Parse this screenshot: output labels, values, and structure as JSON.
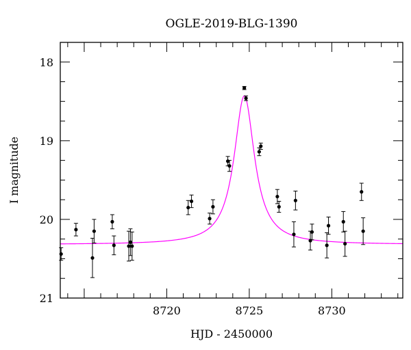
{
  "chart_data": {
    "type": "scatter",
    "title": "OGLE-2019-BLG-1390",
    "xlabel": "HJD - 2450000",
    "ylabel": "I magnitude",
    "xlim": [
      8713.55,
      8734.3
    ],
    "ylim": [
      21,
      17.75
    ],
    "y_inverted": true,
    "x_tick_labels": [
      "8720",
      "8725",
      "8730"
    ],
    "x_ticks": [
      8720,
      8725,
      8730
    ],
    "y_tick_labels": [
      "18",
      "19",
      "20",
      "21"
    ],
    "y_ticks": [
      18,
      19,
      20,
      21
    ],
    "grid": false,
    "legend": "none",
    "series": [
      {
        "kind": "points_with_errorbars",
        "color": "#000000",
        "points": [
          {
            "x": 8713.6,
            "y": 20.44,
            "err": 0.08
          },
          {
            "x": 8714.5,
            "y": 20.13,
            "err": 0.08
          },
          {
            "x": 8715.5,
            "y": 20.49,
            "err": 0.25
          },
          {
            "x": 8715.6,
            "y": 20.15,
            "err": 0.15
          },
          {
            "x": 8716.7,
            "y": 20.03,
            "err": 0.09
          },
          {
            "x": 8716.8,
            "y": 20.33,
            "err": 0.12
          },
          {
            "x": 8717.7,
            "y": 20.34,
            "err": 0.19
          },
          {
            "x": 8717.8,
            "y": 20.29,
            "err": 0.17
          },
          {
            "x": 8717.9,
            "y": 20.34,
            "err": 0.18
          },
          {
            "x": 8721.3,
            "y": 19.85,
            "err": 0.09
          },
          {
            "x": 8721.5,
            "y": 19.77,
            "err": 0.08
          },
          {
            "x": 8722.6,
            "y": 19.99,
            "err": 0.07
          },
          {
            "x": 8722.8,
            "y": 19.84,
            "err": 0.09
          },
          {
            "x": 8723.7,
            "y": 19.26,
            "err": 0.06
          },
          {
            "x": 8723.8,
            "y": 19.32,
            "err": 0.07
          },
          {
            "x": 8724.7,
            "y": 18.33,
            "err": 0.02
          },
          {
            "x": 8724.8,
            "y": 18.46,
            "err": 0.03
          },
          {
            "x": 8725.6,
            "y": 19.14,
            "err": 0.05
          },
          {
            "x": 8725.7,
            "y": 19.07,
            "err": 0.04
          },
          {
            "x": 8726.7,
            "y": 19.71,
            "err": 0.09
          },
          {
            "x": 8726.8,
            "y": 19.84,
            "err": 0.07
          },
          {
            "x": 8727.7,
            "y": 20.19,
            "err": 0.16
          },
          {
            "x": 8727.8,
            "y": 19.76,
            "err": 0.12
          },
          {
            "x": 8728.7,
            "y": 20.27,
            "err": 0.12
          },
          {
            "x": 8728.8,
            "y": 20.16,
            "err": 0.1
          },
          {
            "x": 8729.7,
            "y": 20.33,
            "err": 0.16
          },
          {
            "x": 8729.8,
            "y": 20.08,
            "err": 0.11
          },
          {
            "x": 8730.7,
            "y": 20.03,
            "err": 0.13
          },
          {
            "x": 8730.8,
            "y": 20.31,
            "err": 0.16
          },
          {
            "x": 8731.8,
            "y": 19.65,
            "err": 0.11
          },
          {
            "x": 8731.9,
            "y": 20.15,
            "err": 0.17
          }
        ]
      },
      {
        "kind": "model_curve",
        "color": "#ff00ff",
        "baseline_mag": 20.32,
        "peak_mag": 18.43,
        "t0": 8724.7,
        "width_days": 0.75
      }
    ]
  }
}
